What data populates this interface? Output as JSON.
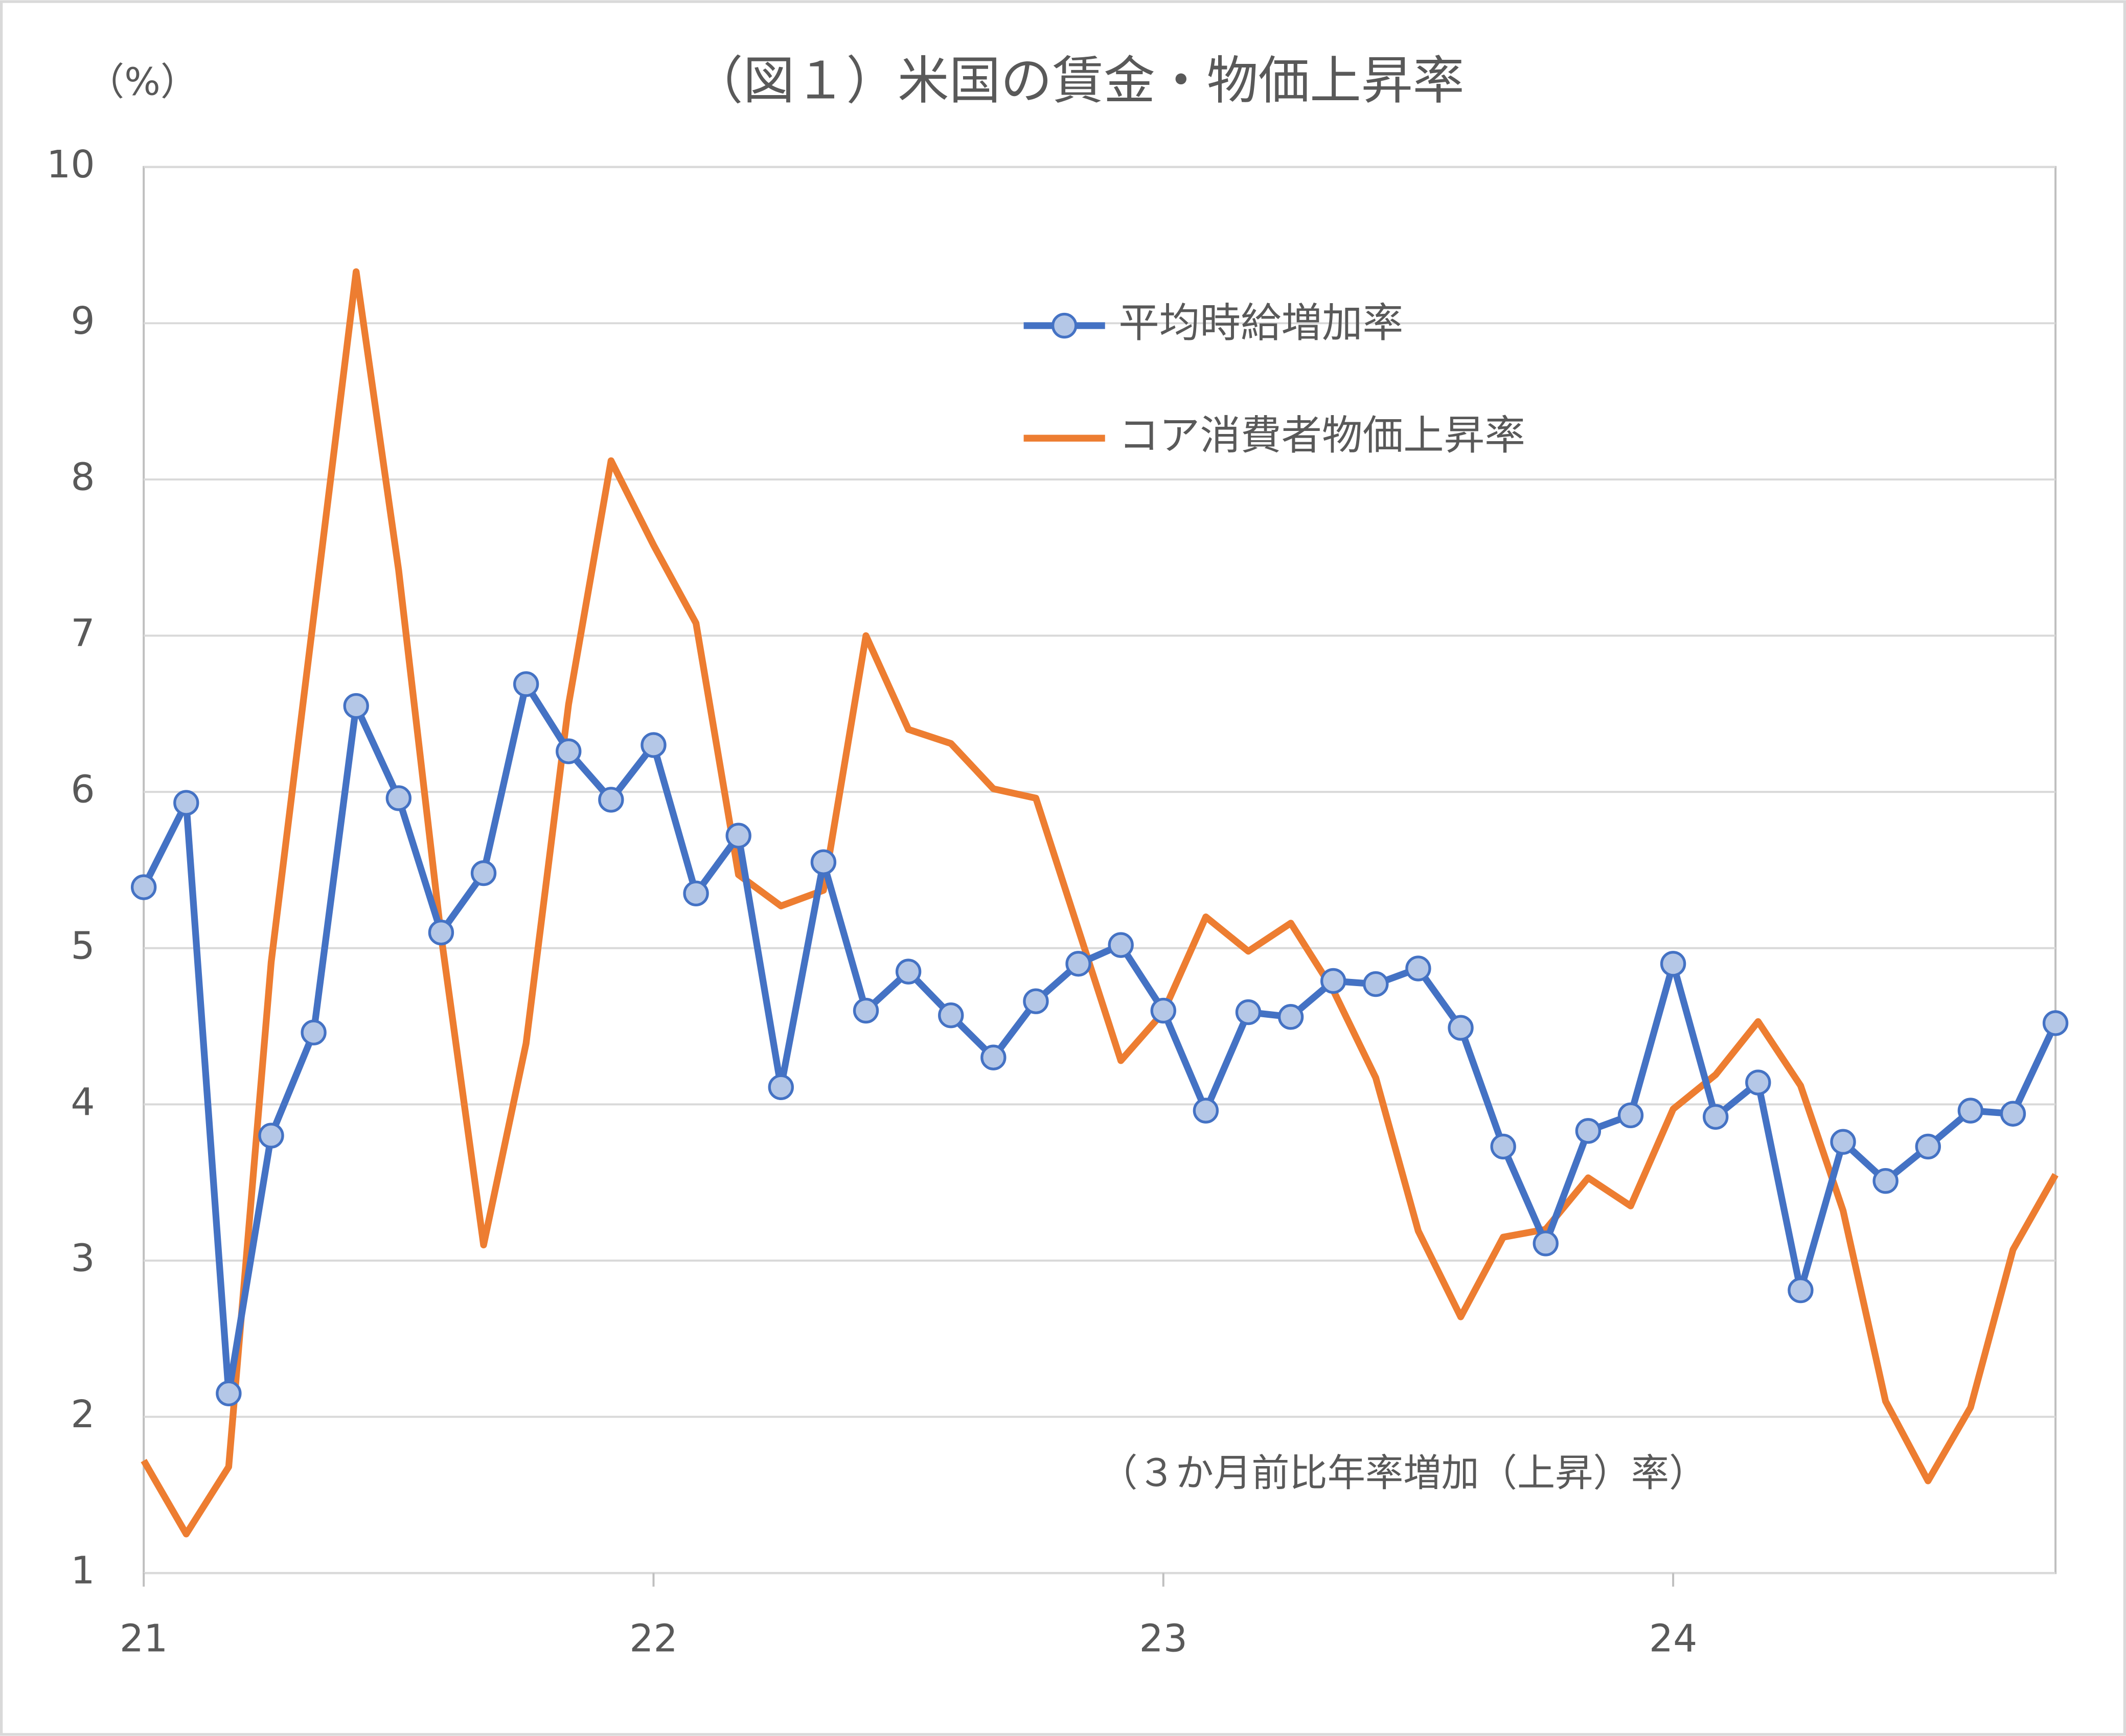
{
  "chart_data": {
    "type": "line",
    "title": "（図１）米国の賃金・物価上昇率",
    "y_label": "（%）",
    "annotation": "（３か月前比年率増加（上昇）率）",
    "categories": [
      "21",
      null,
      null,
      null,
      null,
      null,
      null,
      null,
      null,
      null,
      null,
      null,
      "22",
      null,
      null,
      null,
      null,
      null,
      null,
      null,
      null,
      null,
      null,
      null,
      "23",
      null,
      null,
      null,
      null,
      null,
      null,
      null,
      null,
      null,
      null,
      null,
      "24",
      null,
      null,
      null,
      null,
      null,
      null,
      null,
      null,
      null
    ],
    "series": [
      {
        "name": "平均時給増加率",
        "color": "#4472c4",
        "marker": "circle",
        "marker_color": "#b4c7e7",
        "values": [
          5.39,
          5.93,
          2.15,
          3.8,
          4.46,
          6.55,
          5.96,
          5.1,
          5.48,
          6.69,
          6.26,
          5.95,
          6.3,
          5.35,
          5.72,
          4.11,
          5.55,
          4.6,
          4.85,
          4.57,
          4.3,
          4.66,
          4.9,
          5.02,
          4.6,
          3.96,
          4.59,
          4.56,
          4.79,
          4.77,
          4.87,
          4.49,
          3.73,
          3.11,
          3.83,
          3.93,
          4.9,
          3.92,
          4.14,
          2.81,
          3.76,
          3.51,
          3.73,
          3.96,
          3.94,
          4.52
        ]
      },
      {
        "name": "コア消費者物価上昇率",
        "color": "#ed7d31",
        "values": [
          1.72,
          1.25,
          1.68,
          4.91,
          7.12,
          9.33,
          7.42,
          5.08,
          3.1,
          4.39,
          6.56,
          8.12,
          7.58,
          7.08,
          5.47,
          5.27,
          5.37,
          7.0,
          6.4,
          6.31,
          6.02,
          5.96,
          5.12,
          4.28,
          4.59,
          5.2,
          4.98,
          5.16,
          4.73,
          4.17,
          3.19,
          2.64,
          3.15,
          3.2,
          3.53,
          3.35,
          3.97,
          4.19,
          4.53,
          4.12,
          3.32,
          2.1,
          1.59,
          2.06,
          3.07,
          3.55
        ]
      }
    ],
    "ylim": [
      1,
      10
    ],
    "yticks": [
      1,
      2,
      3,
      4,
      5,
      6,
      7,
      8,
      9,
      10
    ],
    "grid": true
  }
}
